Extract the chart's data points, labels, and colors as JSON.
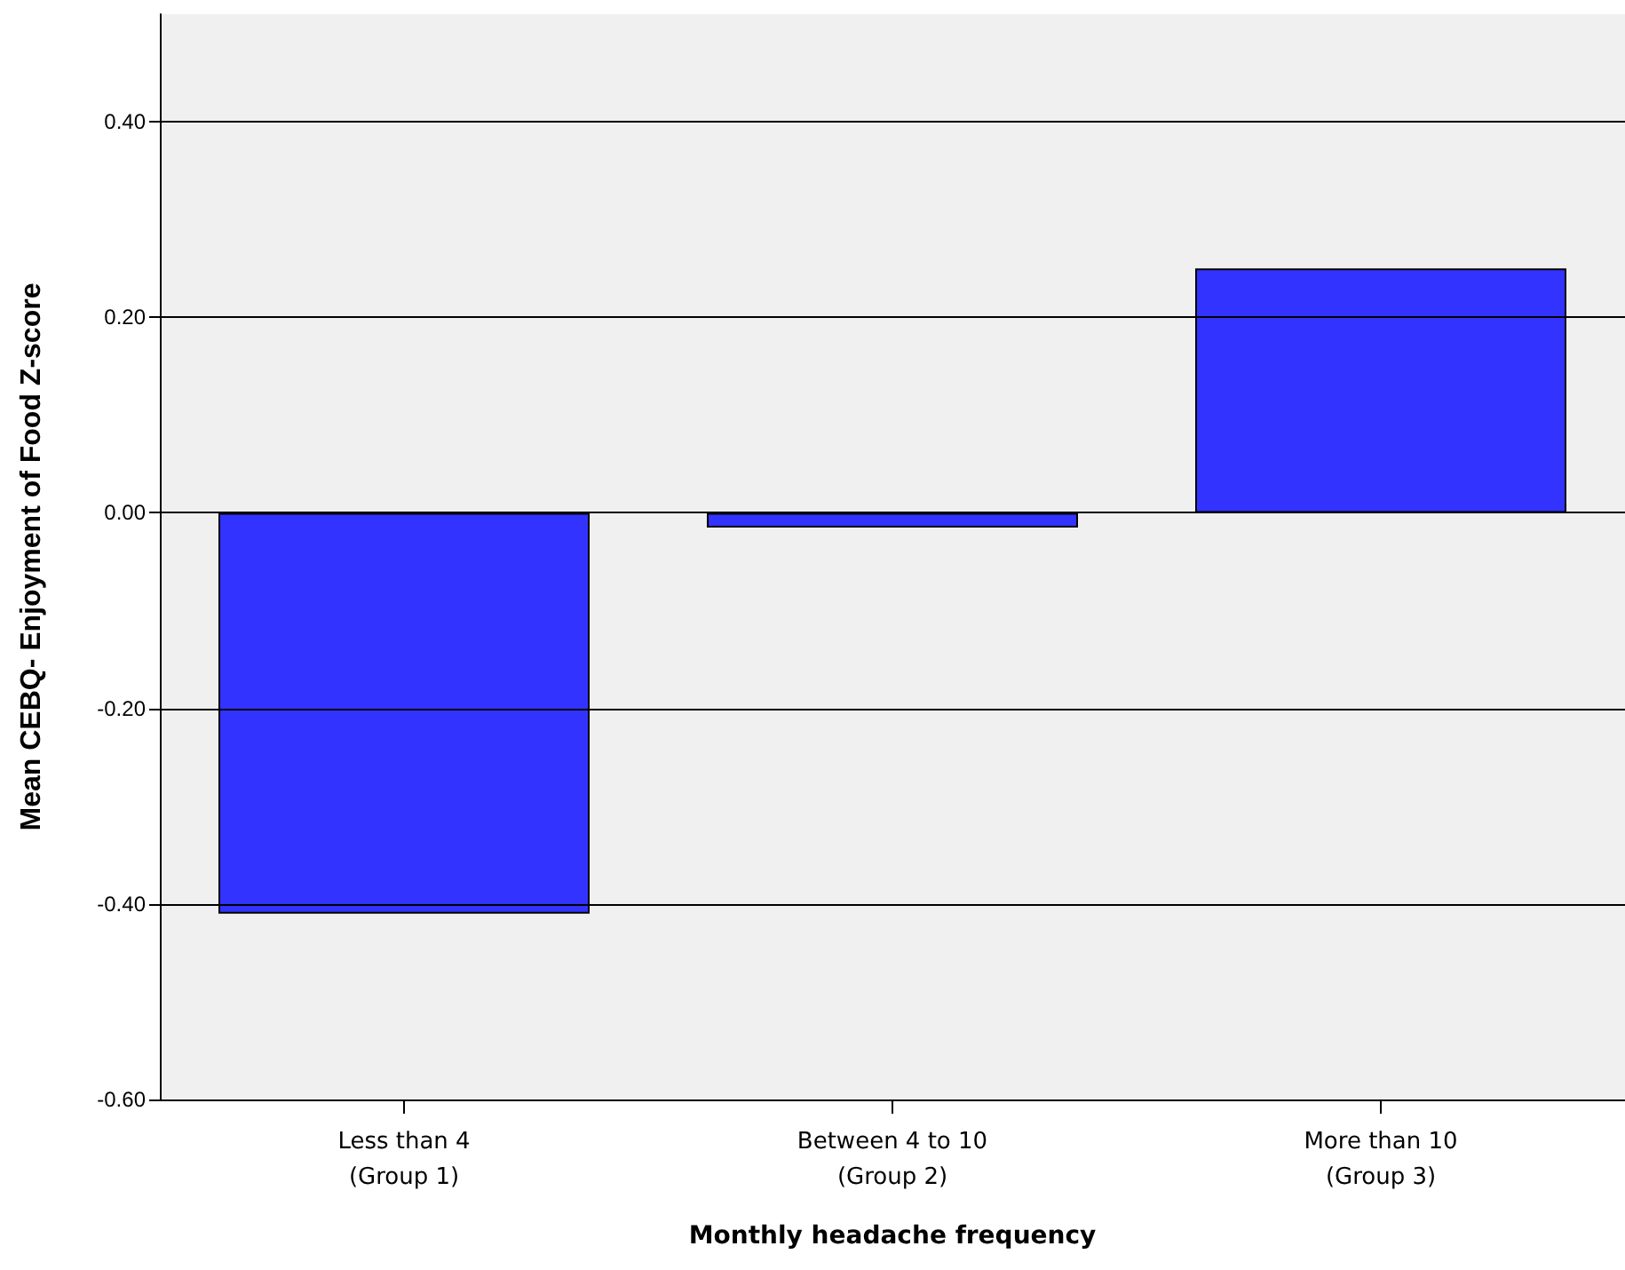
{
  "chart_data": {
    "type": "bar",
    "xlabel": "Monthly headache frequency",
    "ylabel": "Mean CEBQ- Enjoyment of Food Z-score",
    "categories": [
      "Less than 4\n(Group 1)",
      "Between 4 to 10\n(Group 2)",
      "More than 10\n(Group 3)"
    ],
    "values": [
      -0.41,
      -0.015,
      0.25
    ],
    "color": "#3333ff",
    "ylim": [
      -0.6,
      0.51
    ],
    "yticks": [
      {
        "value": -0.6,
        "label": "-0.60"
      },
      {
        "value": -0.4,
        "label": "-0.40"
      },
      {
        "value": -0.2,
        "label": "-0.20"
      },
      {
        "value": 0,
        "label": "0.00"
      },
      {
        "value": 0.2,
        "label": "0.20"
      },
      {
        "value": 0.4,
        "label": "0.40"
      }
    ],
    "grid": "y"
  }
}
